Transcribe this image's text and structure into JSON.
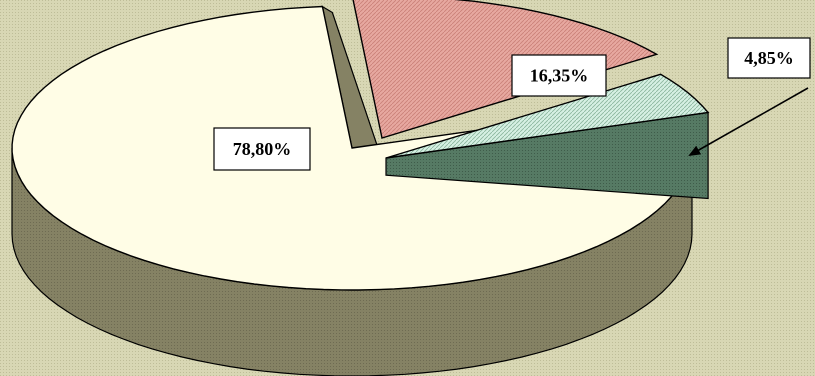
{
  "chart_data": {
    "type": "pie",
    "style": "3d-exploded",
    "labels": [
      "78,80%",
      "16,35%",
      "4,85%"
    ],
    "values": [
      78.8,
      16.35,
      4.85
    ],
    "colors": {
      "background": "#d8d7b4",
      "slice_top": [
        "#fffde6",
        "#e7a8a0",
        "#d6f0e3"
      ],
      "slice_side": [
        "#858264",
        "#7a4a44",
        "#567a64"
      ],
      "outline": "#000000"
    },
    "legend": "none"
  }
}
